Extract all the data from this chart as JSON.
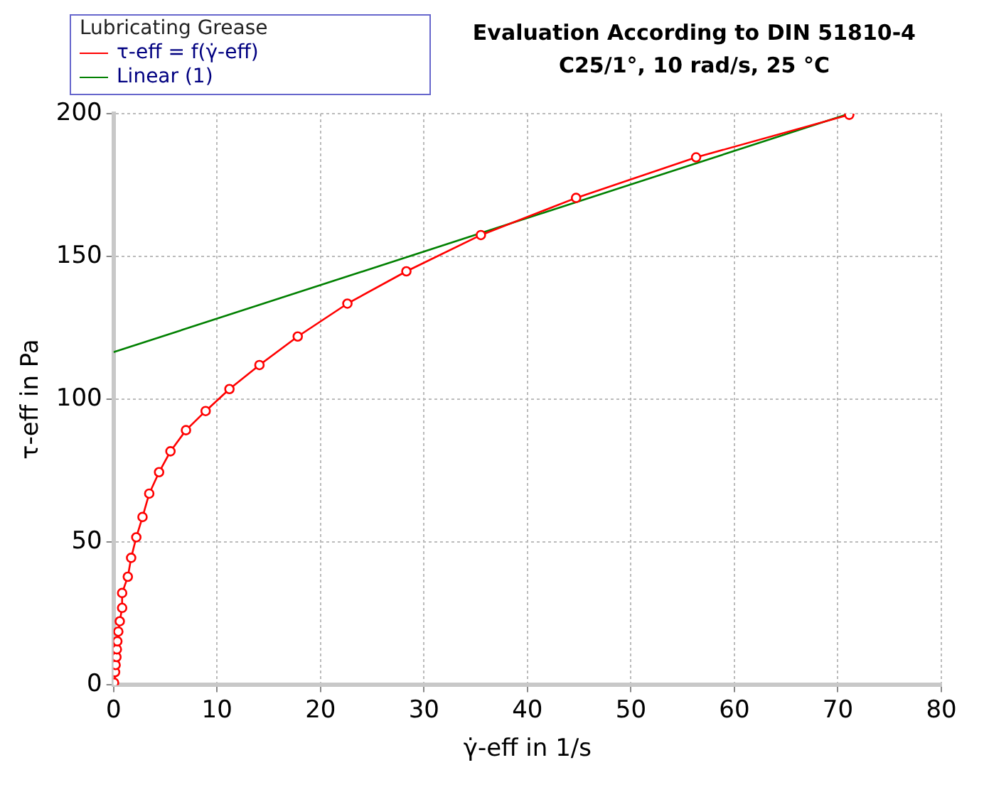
{
  "chart_data": {
    "type": "line",
    "title": "Evaluation According to DIN 51810-4",
    "subtitle": "C25/1°, 10 rad/s, 25 °C",
    "xlabel": "γ̇-eff in 1/s",
    "ylabel": "τ-eff in Pa",
    "legend_title": "Lubricating Grease",
    "legend": "top left",
    "grid": true,
    "xlim": [
      0,
      80
    ],
    "xticks": [
      0,
      10,
      20,
      30,
      40,
      50,
      60,
      70,
      80
    ],
    "ylim": [
      0,
      200
    ],
    "yticks": [
      0,
      50,
      100,
      150,
      200
    ],
    "series": [
      {
        "name": "τ-eff = f(γ̇-eff)",
        "color": "#ff0000",
        "marker": "circle",
        "x": [
          0.05,
          0.15,
          0.2,
          0.28,
          0.32,
          0.37,
          0.46,
          0.6,
          0.83,
          0.83,
          1.38,
          1.7,
          2.2,
          2.8,
          3.45,
          4.4,
          5.5,
          7.0,
          8.9,
          11.2,
          14.1,
          17.8,
          22.6,
          28.3,
          35.5,
          44.7,
          56.3,
          71.1
        ],
        "values": [
          0.8,
          4.5,
          7,
          9.8,
          12.5,
          15.3,
          18.7,
          22.3,
          27,
          32.2,
          37.9,
          44.5,
          51.7,
          58.8,
          67,
          74.5,
          81.8,
          89.2,
          95.9,
          103.6,
          112,
          122,
          133.5,
          144.8,
          157.5,
          170.5,
          184.7,
          199.6
        ]
      },
      {
        "name": "Linear (1)",
        "color": "#008000",
        "marker": "none",
        "x": [
          0,
          71.1
        ],
        "values": [
          116.5,
          200
        ]
      }
    ]
  }
}
